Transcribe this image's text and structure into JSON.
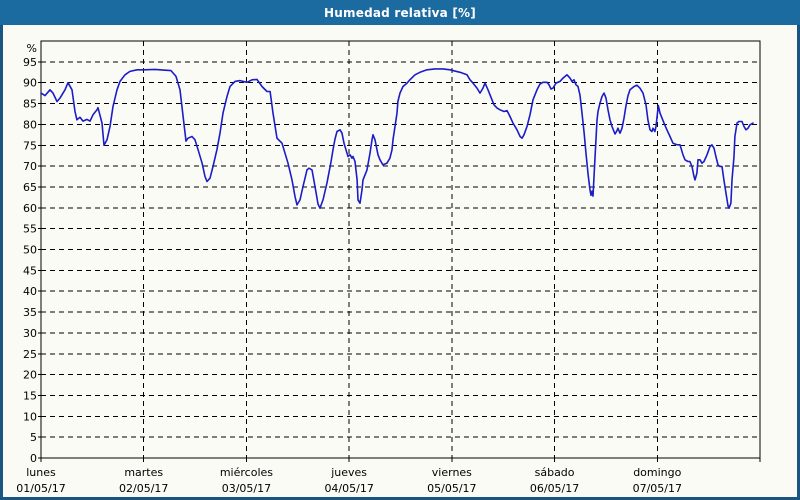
{
  "window": {
    "title": "Humedad relativa [%]"
  },
  "colors": {
    "title_bar": "#1C6BA0",
    "title_text": "#FFFFFF",
    "window_border": "#1A5480",
    "background": "#FBFBF6",
    "grid": "#000000",
    "axis": "#000000",
    "line": "#1C1CC8",
    "label_text": "#000000"
  },
  "chart_data": {
    "type": "line",
    "title": "Humedad relativa [%]",
    "xlabel": "",
    "ylabel": "%",
    "ylim": [
      0,
      100
    ],
    "y_ticks": [
      95,
      90,
      85,
      80,
      75,
      70,
      65,
      60,
      55,
      50,
      45,
      40,
      35,
      30,
      25,
      20,
      15,
      10,
      5,
      0
    ],
    "grid": "dashed",
    "legend": "none",
    "x_unit": "days_from_monday_start",
    "x_range_days": [
      0,
      7
    ],
    "x_days": [
      {
        "name": "lunes",
        "date": "01/05/17"
      },
      {
        "name": "martes",
        "date": "02/05/17"
      },
      {
        "name": "miércoles",
        "date": "03/05/17"
      },
      {
        "name": "jueves",
        "date": "04/05/17"
      },
      {
        "name": "viernes",
        "date": "05/05/17"
      },
      {
        "name": "sábado",
        "date": "06/05/17"
      },
      {
        "name": "domingo",
        "date": "07/05/17"
      }
    ],
    "series": [
      {
        "name": "Humedad relativa [%]",
        "color": "#1C1CC8",
        "points": [
          [
            0.0,
            87.5
          ],
          [
            0.039,
            86.9
          ],
          [
            0.088,
            88.3
          ],
          [
            0.117,
            87.5
          ],
          [
            0.156,
            85.5
          ],
          [
            0.185,
            86.3
          ],
          [
            0.234,
            88.3
          ],
          [
            0.263,
            90.0
          ],
          [
            0.302,
            88.3
          ],
          [
            0.331,
            83.1
          ],
          [
            0.35,
            81.1
          ],
          [
            0.38,
            81.7
          ],
          [
            0.409,
            80.8
          ],
          [
            0.448,
            81.2
          ],
          [
            0.477,
            80.8
          ],
          [
            0.506,
            82.3
          ],
          [
            0.545,
            83.5
          ],
          [
            0.555,
            84.0
          ],
          [
            0.594,
            80.3
          ],
          [
            0.613,
            75.0
          ],
          [
            0.643,
            76.3
          ],
          [
            0.672,
            79.5
          ],
          [
            0.701,
            84.3
          ],
          [
            0.74,
            88.3
          ],
          [
            0.769,
            90.3
          ],
          [
            0.818,
            91.9
          ],
          [
            0.866,
            92.7
          ],
          [
            0.935,
            93.1
          ],
          [
            1.003,
            93.1
          ],
          [
            1.11,
            93.2
          ],
          [
            1.207,
            93.0
          ],
          [
            1.266,
            92.9
          ],
          [
            1.314,
            91.5
          ],
          [
            1.353,
            88.3
          ],
          [
            1.383,
            81.9
          ],
          [
            1.412,
            76.0
          ],
          [
            1.431,
            76.7
          ],
          [
            1.47,
            77.1
          ],
          [
            1.499,
            76.3
          ],
          [
            1.529,
            73.9
          ],
          [
            1.568,
            70.7
          ],
          [
            1.597,
            67.5
          ],
          [
            1.616,
            66.3
          ],
          [
            1.645,
            67.1
          ],
          [
            1.675,
            69.9
          ],
          [
            1.713,
            73.9
          ],
          [
            1.743,
            77.9
          ],
          [
            1.772,
            82.7
          ],
          [
            1.811,
            86.7
          ],
          [
            1.84,
            89.1
          ],
          [
            1.889,
            90.3
          ],
          [
            1.937,
            90.5
          ],
          [
            2.006,
            90.1
          ],
          [
            2.054,
            90.7
          ],
          [
            2.103,
            90.8
          ],
          [
            2.152,
            89.1
          ],
          [
            2.2,
            87.9
          ],
          [
            2.23,
            87.9
          ],
          [
            2.259,
            82.7
          ],
          [
            2.298,
            76.7
          ],
          [
            2.346,
            75.5
          ],
          [
            2.376,
            73.1
          ],
          [
            2.405,
            70.7
          ],
          [
            2.444,
            66.7
          ],
          [
            2.473,
            62.7
          ],
          [
            2.492,
            60.7
          ],
          [
            2.522,
            61.9
          ],
          [
            2.551,
            65.1
          ],
          [
            2.59,
            69.1
          ],
          [
            2.609,
            69.5
          ],
          [
            2.638,
            69.1
          ],
          [
            2.668,
            65.1
          ],
          [
            2.697,
            60.9
          ],
          [
            2.716,
            59.9
          ],
          [
            2.746,
            62.0
          ],
          [
            2.784,
            66.0
          ],
          [
            2.823,
            71.0
          ],
          [
            2.843,
            73.9
          ],
          [
            2.862,
            76.5
          ],
          [
            2.882,
            78.3
          ],
          [
            2.911,
            78.7
          ],
          [
            2.93,
            77.9
          ],
          [
            2.95,
            75.5
          ],
          [
            2.979,
            73.1
          ],
          [
            2.989,
            72.3
          ],
          [
            3.009,
            72.7
          ],
          [
            3.028,
            71.9
          ],
          [
            3.038,
            72.3
          ],
          [
            3.057,
            71.1
          ],
          [
            3.077,
            66.7
          ],
          [
            3.086,
            61.9
          ],
          [
            3.106,
            61.1
          ],
          [
            3.125,
            64.3
          ],
          [
            3.135,
            66.7
          ],
          [
            3.174,
            69.1
          ],
          [
            3.203,
            73.1
          ],
          [
            3.223,
            76.3
          ],
          [
            3.232,
            77.5
          ],
          [
            3.252,
            76.3
          ],
          [
            3.271,
            73.9
          ],
          [
            3.281,
            72.7
          ],
          [
            3.3,
            71.5
          ],
          [
            3.329,
            70.3
          ],
          [
            3.368,
            70.7
          ],
          [
            3.397,
            71.9
          ],
          [
            3.417,
            73.9
          ],
          [
            3.427,
            76.3
          ],
          [
            3.446,
            79.5
          ],
          [
            3.466,
            82.7
          ],
          [
            3.475,
            85.5
          ],
          [
            3.495,
            87.5
          ],
          [
            3.524,
            89.1
          ],
          [
            3.563,
            89.9
          ],
          [
            3.592,
            90.7
          ],
          [
            3.641,
            91.9
          ],
          [
            3.69,
            92.5
          ],
          [
            3.758,
            93.1
          ],
          [
            3.836,
            93.3
          ],
          [
            3.914,
            93.3
          ],
          [
            3.982,
            93.1
          ],
          [
            4.079,
            92.5
          ],
          [
            4.147,
            91.9
          ],
          [
            4.177,
            90.7
          ],
          [
            4.206,
            89.9
          ],
          [
            4.245,
            88.7
          ],
          [
            4.274,
            87.5
          ],
          [
            4.303,
            88.7
          ],
          [
            4.323,
            89.9
          ],
          [
            4.352,
            88.3
          ],
          [
            4.391,
            85.9
          ],
          [
            4.41,
            84.7
          ],
          [
            4.44,
            83.9
          ],
          [
            4.469,
            83.5
          ],
          [
            4.508,
            83.1
          ],
          [
            4.537,
            83.3
          ],
          [
            4.566,
            81.9
          ],
          [
            4.595,
            80.3
          ],
          [
            4.634,
            78.7
          ],
          [
            4.664,
            77.1
          ],
          [
            4.683,
            76.7
          ],
          [
            4.702,
            77.5
          ],
          [
            4.732,
            79.5
          ],
          [
            4.761,
            82.3
          ],
          [
            4.79,
            85.9
          ],
          [
            4.829,
            88.3
          ],
          [
            4.858,
            89.7
          ],
          [
            4.887,
            90.1
          ],
          [
            4.926,
            90.1
          ],
          [
            4.946,
            89.5
          ],
          [
            4.965,
            88.5
          ],
          [
            4.985,
            88.7
          ],
          [
            5.014,
            89.9
          ],
          [
            5.053,
            90.3
          ],
          [
            5.082,
            91.1
          ],
          [
            5.121,
            91.9
          ],
          [
            5.15,
            91.1
          ],
          [
            5.17,
            90.3
          ],
          [
            5.189,
            90.7
          ],
          [
            5.209,
            89.5
          ],
          [
            5.228,
            89.1
          ],
          [
            5.248,
            87.0
          ],
          [
            5.267,
            82.7
          ],
          [
            5.287,
            78.0
          ],
          [
            5.306,
            73.0
          ],
          [
            5.326,
            68.0
          ],
          [
            5.345,
            64.3
          ],
          [
            5.355,
            63.0
          ],
          [
            5.365,
            64.0
          ],
          [
            5.374,
            62.8
          ],
          [
            5.394,
            72.0
          ],
          [
            5.413,
            81.0
          ],
          [
            5.423,
            83.1
          ],
          [
            5.442,
            85.1
          ],
          [
            5.462,
            86.7
          ],
          [
            5.481,
            87.5
          ],
          [
            5.501,
            86.3
          ],
          [
            5.52,
            83.5
          ],
          [
            5.54,
            81.1
          ],
          [
            5.559,
            79.5
          ],
          [
            5.579,
            78.3
          ],
          [
            5.588,
            77.7
          ],
          [
            5.608,
            78.5
          ],
          [
            5.617,
            79.1
          ],
          [
            5.637,
            77.9
          ],
          [
            5.656,
            79.1
          ],
          [
            5.676,
            81.5
          ],
          [
            5.695,
            84.5
          ],
          [
            5.715,
            86.9
          ],
          [
            5.734,
            88.3
          ],
          [
            5.773,
            89.1
          ],
          [
            5.802,
            89.4
          ],
          [
            5.831,
            88.7
          ],
          [
            5.861,
            87.5
          ],
          [
            5.89,
            84.7
          ],
          [
            5.909,
            81.1
          ],
          [
            5.929,
            78.7
          ],
          [
            5.948,
            78.3
          ],
          [
            5.958,
            79.1
          ],
          [
            5.977,
            78.3
          ],
          [
            5.987,
            79.5
          ],
          [
            6.01,
            84.5
          ],
          [
            6.026,
            82.7
          ],
          [
            6.046,
            81.5
          ],
          [
            6.065,
            80.3
          ],
          [
            6.094,
            78.7
          ],
          [
            6.124,
            77.1
          ],
          [
            6.153,
            75.5
          ],
          [
            6.192,
            75.1
          ],
          [
            6.221,
            75.1
          ],
          [
            6.25,
            72.7
          ],
          [
            6.27,
            71.5
          ],
          [
            6.299,
            71.1
          ],
          [
            6.318,
            71.1
          ],
          [
            6.338,
            69.9
          ],
          [
            6.357,
            67.5
          ],
          [
            6.367,
            66.7
          ],
          [
            6.386,
            68.3
          ],
          [
            6.396,
            71.5
          ],
          [
            6.416,
            71.5
          ],
          [
            6.435,
            70.7
          ],
          [
            6.455,
            71.1
          ],
          [
            6.484,
            72.7
          ],
          [
            6.513,
            74.7
          ],
          [
            6.532,
            75.1
          ],
          [
            6.552,
            74.3
          ],
          [
            6.571,
            72.3
          ],
          [
            6.591,
            70.3
          ],
          [
            6.61,
            69.9
          ],
          [
            6.63,
            69.9
          ],
          [
            6.649,
            66.7
          ],
          [
            6.669,
            63.5
          ],
          [
            6.688,
            60.5
          ],
          [
            6.698,
            59.9
          ],
          [
            6.717,
            61.1
          ],
          [
            6.727,
            66.7
          ],
          [
            6.747,
            72.3
          ],
          [
            6.756,
            77.1
          ],
          [
            6.776,
            80.3
          ],
          [
            6.795,
            80.7
          ],
          [
            6.825,
            80.7
          ],
          [
            6.844,
            79.5
          ],
          [
            6.864,
            78.7
          ],
          [
            6.883,
            79.1
          ],
          [
            6.903,
            79.9
          ],
          [
            6.932,
            80.3
          ]
        ]
      }
    ]
  }
}
